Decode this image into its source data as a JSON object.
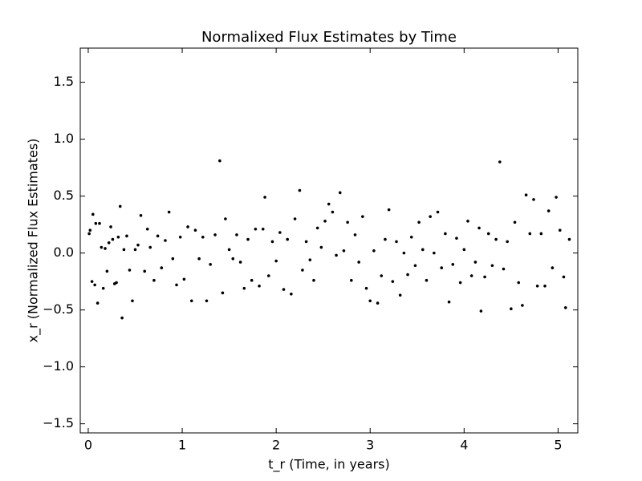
{
  "chart_data": {
    "type": "scatter",
    "title": "Normalixed Flux Estimates by Time",
    "x_label": "t_r (Time, in years)",
    "y_label": "x_r (Normalized Flux Estimates)",
    "color": "#000000",
    "xlim": [
      -0.085,
      5.21
    ],
    "ylim": [
      -1.58,
      1.8
    ],
    "xticks": [
      0,
      1,
      2,
      3,
      4,
      5
    ],
    "yticks": [
      {
        "value": -1.5,
        "label": "−1.5"
      },
      {
        "value": -1.0,
        "label": "−1.0"
      },
      {
        "value": -0.5,
        "label": "−0.5"
      },
      {
        "value": 0,
        "label": "0.0"
      },
      0.5,
      {
        "value": 1.0,
        "label": "1.0"
      },
      1.5
    ],
    "x": [
      0.01,
      0.02,
      0.04,
      0.05,
      0.07,
      0.08,
      0.1,
      0.12,
      0.14,
      0.16,
      0.18,
      0.2,
      0.22,
      0.24,
      0.26,
      0.28,
      0.3,
      0.32,
      0.34,
      0.36,
      0.38,
      0.41,
      0.44,
      0.47,
      0.5,
      0.53,
      0.56,
      0.6,
      0.63,
      0.66,
      0.7,
      0.74,
      0.78,
      0.82,
      0.86,
      0.9,
      0.94,
      0.98,
      1.02,
      1.06,
      1.1,
      1.14,
      1.18,
      1.22,
      1.26,
      1.3,
      1.35,
      1.4,
      1.43,
      1.46,
      1.5,
      1.54,
      1.58,
      1.62,
      1.66,
      1.7,
      1.74,
      1.78,
      1.82,
      1.86,
      1.88,
      1.92,
      1.96,
      2.0,
      2.04,
      2.08,
      2.12,
      2.16,
      2.2,
      2.25,
      2.28,
      2.32,
      2.36,
      2.4,
      2.44,
      2.48,
      2.52,
      2.56,
      2.6,
      2.64,
      2.68,
      2.72,
      2.76,
      2.8,
      2.84,
      2.88,
      2.92,
      2.96,
      3.0,
      3.04,
      3.08,
      3.12,
      3.16,
      3.2,
      3.24,
      3.28,
      3.32,
      3.36,
      3.4,
      3.44,
      3.48,
      3.52,
      3.56,
      3.6,
      3.64,
      3.68,
      3.72,
      3.76,
      3.8,
      3.84,
      3.88,
      3.92,
      3.96,
      4.0,
      4.04,
      4.08,
      4.12,
      4.16,
      4.18,
      4.22,
      4.26,
      4.3,
      4.34,
      4.38,
      4.42,
      4.46,
      4.5,
      4.54,
      4.58,
      4.62,
      4.66,
      4.7,
      4.74,
      4.78,
      4.82,
      4.86,
      4.9,
      4.94,
      4.98,
      5.02,
      5.06,
      5.08,
      5.12
    ],
    "values": [
      0.17,
      0.2,
      -0.25,
      0.34,
      -0.28,
      0.26,
      -0.44,
      0.26,
      0.05,
      -0.31,
      0.04,
      -0.16,
      0.09,
      0.23,
      0.12,
      -0.27,
      -0.26,
      0.14,
      0.41,
      -0.57,
      0.03,
      0.15,
      -0.15,
      -0.42,
      0.03,
      0.07,
      0.33,
      -0.16,
      0.21,
      0.05,
      -0.24,
      0.15,
      -0.13,
      0.11,
      0.36,
      -0.05,
      -0.28,
      0.14,
      -0.23,
      0.23,
      -0.42,
      0.2,
      -0.05,
      0.14,
      -0.42,
      -0.1,
      0.16,
      0.81,
      -0.35,
      0.3,
      0.03,
      -0.05,
      0.16,
      -0.08,
      -0.31,
      0.12,
      -0.24,
      0.21,
      -0.29,
      0.21,
      0.49,
      -0.2,
      0.1,
      -0.07,
      0.18,
      -0.32,
      0.12,
      -0.36,
      0.3,
      0.55,
      -0.15,
      0.1,
      -0.06,
      -0.24,
      0.22,
      0.05,
      0.28,
      0.43,
      0.36,
      -0.02,
      0.53,
      0.02,
      0.27,
      -0.24,
      0.16,
      -0.08,
      0.32,
      -0.31,
      -0.42,
      0.02,
      -0.44,
      -0.2,
      0.12,
      0.38,
      -0.25,
      0.1,
      -0.37,
      0.0,
      -0.19,
      0.14,
      -0.11,
      0.27,
      0.03,
      -0.24,
      0.32,
      0.0,
      0.36,
      -0.13,
      0.17,
      -0.43,
      -0.1,
      0.13,
      -0.26,
      0.03,
      0.28,
      -0.2,
      -0.08,
      0.22,
      -0.51,
      -0.21,
      0.17,
      -0.11,
      0.12,
      0.8,
      -0.14,
      0.1,
      -0.49,
      0.27,
      -0.26,
      -0.46,
      0.51,
      0.17,
      0.47,
      -0.29,
      0.17,
      -0.29,
      0.37,
      -0.13,
      0.49,
      0.2,
      -0.21,
      -0.48,
      0.12
    ]
  }
}
